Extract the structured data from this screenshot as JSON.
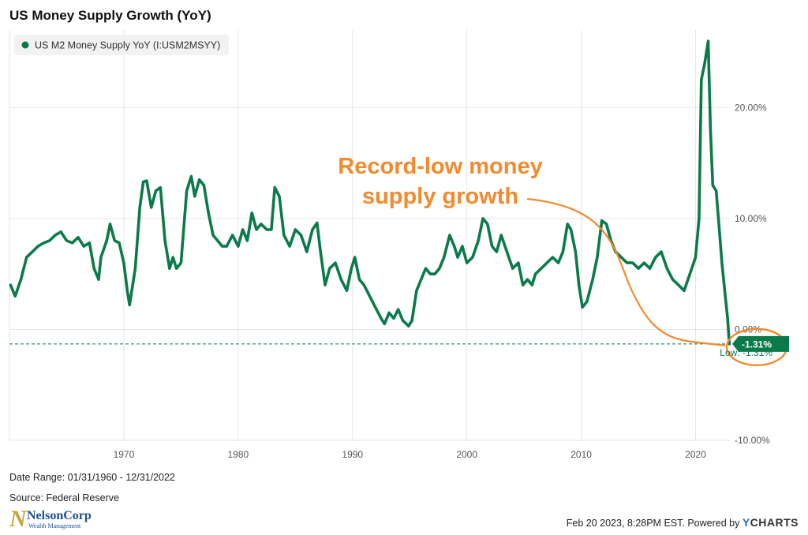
{
  "title": "US Money Supply Growth (YoY)",
  "legend": {
    "label": "US M2 Money Supply YoY (I:USM2MSYY)"
  },
  "callout": {
    "line1": "Record-low money",
    "line2": "supply growth"
  },
  "last_value_label": "-1.31%",
  "low_label": "Low: -1.31%",
  "meta": {
    "date_range": "Date Range: 01/31/1960 - 12/31/2022",
    "source": "Source: Federal Reserve"
  },
  "logo": {
    "name": "NelsonCorp",
    "sub": "Wealth Management",
    "letter": "N"
  },
  "footer": {
    "text": "Feb 20 2023, 8:28PM EST. Powered by",
    "brand_y": "Y",
    "brand_rest": "CHARTS"
  },
  "colors": {
    "series": "#0b7a4b",
    "callout": "#f28a2e",
    "grid": "#e6e6e6"
  },
  "chart_data": {
    "type": "line",
    "title": "US Money Supply Growth (YoY)",
    "xlabel": "",
    "ylabel": "",
    "xlim": [
      1960,
      2023
    ],
    "ylim": [
      -10,
      27
    ],
    "grid": true,
    "legend_position": "top-left",
    "x_ticks": [
      1970,
      1980,
      1990,
      2000,
      2010,
      2020
    ],
    "y_ticks": [
      {
        "value": 20,
        "label": "20.00%"
      },
      {
        "value": 10,
        "label": "10.00%"
      },
      {
        "value": 0,
        "label": "0.00%"
      },
      {
        "value": -10,
        "label": "-10.00%"
      }
    ],
    "low_line_value": -1.31,
    "series": [
      {
        "name": "US M2 Money Supply YoY (I:USM2MSYY)",
        "color": "#0b7a4b",
        "points": [
          [
            1960.1,
            4.0
          ],
          [
            1960.5,
            3.0
          ],
          [
            1961.0,
            4.5
          ],
          [
            1961.5,
            6.5
          ],
          [
            1962.0,
            7.0
          ],
          [
            1962.5,
            7.5
          ],
          [
            1963.0,
            7.8
          ],
          [
            1963.5,
            8.0
          ],
          [
            1964.0,
            8.5
          ],
          [
            1964.5,
            8.8
          ],
          [
            1965.0,
            8.0
          ],
          [
            1965.5,
            7.8
          ],
          [
            1966.0,
            8.3
          ],
          [
            1966.5,
            7.5
          ],
          [
            1967.0,
            7.8
          ],
          [
            1967.4,
            5.5
          ],
          [
            1967.8,
            4.5
          ],
          [
            1968.0,
            6.5
          ],
          [
            1968.5,
            8.0
          ],
          [
            1968.8,
            9.5
          ],
          [
            1969.2,
            8.0
          ],
          [
            1969.6,
            7.8
          ],
          [
            1970.0,
            6.0
          ],
          [
            1970.3,
            3.5
          ],
          [
            1970.5,
            2.2
          ],
          [
            1971.0,
            5.5
          ],
          [
            1971.4,
            11.0
          ],
          [
            1971.7,
            13.3
          ],
          [
            1972.0,
            13.4
          ],
          [
            1972.4,
            11.0
          ],
          [
            1972.8,
            12.5
          ],
          [
            1973.2,
            12.8
          ],
          [
            1973.6,
            8.0
          ],
          [
            1974.0,
            5.5
          ],
          [
            1974.3,
            6.5
          ],
          [
            1974.6,
            5.5
          ],
          [
            1975.0,
            6.0
          ],
          [
            1975.5,
            12.5
          ],
          [
            1975.9,
            13.8
          ],
          [
            1976.2,
            12.0
          ],
          [
            1976.6,
            13.5
          ],
          [
            1977.0,
            13.0
          ],
          [
            1977.4,
            10.5
          ],
          [
            1977.8,
            8.5
          ],
          [
            1978.2,
            8.0
          ],
          [
            1978.6,
            7.5
          ],
          [
            1979.0,
            7.5
          ],
          [
            1979.5,
            8.5
          ],
          [
            1980.0,
            7.5
          ],
          [
            1980.4,
            9.0
          ],
          [
            1980.8,
            8.0
          ],
          [
            1981.2,
            10.5
          ],
          [
            1981.6,
            9.0
          ],
          [
            1982.0,
            9.5
          ],
          [
            1982.5,
            9.0
          ],
          [
            1982.9,
            9.0
          ],
          [
            1983.2,
            12.8
          ],
          [
            1983.6,
            12.0
          ],
          [
            1984.0,
            8.5
          ],
          [
            1984.5,
            7.5
          ],
          [
            1985.0,
            9.0
          ],
          [
            1985.5,
            8.5
          ],
          [
            1986.0,
            7.0
          ],
          [
            1986.5,
            9.0
          ],
          [
            1986.9,
            9.6
          ],
          [
            1987.2,
            7.0
          ],
          [
            1987.6,
            4.0
          ],
          [
            1988.0,
            5.5
          ],
          [
            1988.5,
            6.0
          ],
          [
            1989.0,
            4.5
          ],
          [
            1989.5,
            3.5
          ],
          [
            1989.9,
            5.5
          ],
          [
            1990.2,
            6.5
          ],
          [
            1990.6,
            4.5
          ],
          [
            1991.0,
            4.0
          ],
          [
            1991.5,
            3.0
          ],
          [
            1992.0,
            2.0
          ],
          [
            1992.5,
            1.0
          ],
          [
            1992.8,
            0.5
          ],
          [
            1993.2,
            1.5
          ],
          [
            1993.6,
            1.0
          ],
          [
            1994.0,
            1.8
          ],
          [
            1994.4,
            0.8
          ],
          [
            1994.9,
            0.3
          ],
          [
            1995.2,
            0.8
          ],
          [
            1995.6,
            3.5
          ],
          [
            1996.0,
            4.5
          ],
          [
            1996.4,
            5.5
          ],
          [
            1996.8,
            5.0
          ],
          [
            1997.2,
            5.0
          ],
          [
            1997.6,
            5.5
          ],
          [
            1998.0,
            6.5
          ],
          [
            1998.5,
            8.5
          ],
          [
            1998.9,
            7.5
          ],
          [
            1999.2,
            6.5
          ],
          [
            1999.6,
            7.5
          ],
          [
            2000.0,
            6.0
          ],
          [
            2000.5,
            6.5
          ],
          [
            2001.0,
            8.0
          ],
          [
            2001.4,
            10.0
          ],
          [
            2001.8,
            9.5
          ],
          [
            2002.2,
            7.5
          ],
          [
            2002.6,
            7.0
          ],
          [
            2003.0,
            8.5
          ],
          [
            2003.5,
            7.0
          ],
          [
            2004.0,
            5.5
          ],
          [
            2004.5,
            6.0
          ],
          [
            2004.9,
            4.0
          ],
          [
            2005.3,
            4.5
          ],
          [
            2005.7,
            4.0
          ],
          [
            2006.0,
            5.0
          ],
          [
            2006.5,
            5.5
          ],
          [
            2007.0,
            6.0
          ],
          [
            2007.5,
            6.5
          ],
          [
            2008.0,
            6.0
          ],
          [
            2008.4,
            7.0
          ],
          [
            2008.8,
            9.5
          ],
          [
            2009.1,
            9.0
          ],
          [
            2009.5,
            7.0
          ],
          [
            2009.8,
            4.0
          ],
          [
            2010.1,
            2.0
          ],
          [
            2010.5,
            2.5
          ],
          [
            2011.0,
            4.5
          ],
          [
            2011.4,
            6.5
          ],
          [
            2011.8,
            9.8
          ],
          [
            2012.2,
            9.5
          ],
          [
            2012.6,
            8.0
          ],
          [
            2013.0,
            7.0
          ],
          [
            2013.5,
            6.5
          ],
          [
            2014.0,
            6.0
          ],
          [
            2014.5,
            6.0
          ],
          [
            2015.0,
            5.5
          ],
          [
            2015.5,
            6.0
          ],
          [
            2016.0,
            5.5
          ],
          [
            2016.5,
            6.5
          ],
          [
            2017.0,
            7.0
          ],
          [
            2017.5,
            5.5
          ],
          [
            2018.0,
            4.5
          ],
          [
            2018.5,
            4.0
          ],
          [
            2019.0,
            3.5
          ],
          [
            2019.5,
            5.0
          ],
          [
            2020.0,
            6.5
          ],
          [
            2020.3,
            10.0
          ],
          [
            2020.5,
            22.5
          ],
          [
            2020.8,
            24.0
          ],
          [
            2021.1,
            26.0
          ],
          [
            2021.3,
            18.0
          ],
          [
            2021.5,
            13.0
          ],
          [
            2021.8,
            12.5
          ],
          [
            2022.0,
            10.0
          ],
          [
            2022.3,
            6.0
          ],
          [
            2022.6,
            3.0
          ],
          [
            2022.8,
            1.0
          ],
          [
            2022.95,
            -1.31
          ]
        ]
      }
    ],
    "annotations": [
      {
        "text": "Record-low money supply growth",
        "points_to": [
          2022.95,
          -1.31
        ]
      }
    ]
  }
}
